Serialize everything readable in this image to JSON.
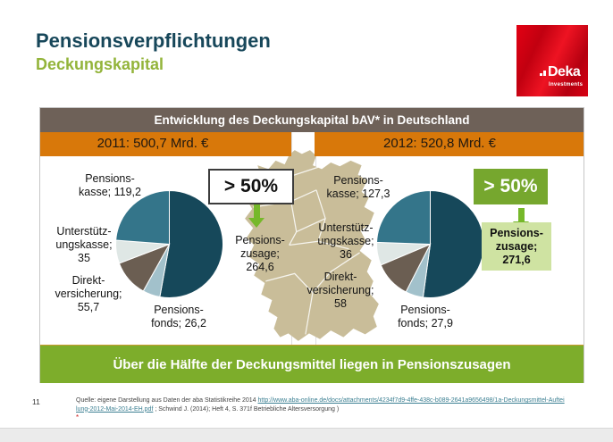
{
  "page": {
    "title": "Pensionsverpflichtungen",
    "subtitle": "Deckungskapital",
    "page_number": "11"
  },
  "logo": {
    "brand": "Deka",
    "sub": "Investments"
  },
  "panel": {
    "header": "Entwicklung des Deckungskapital bAV* in Deutschland",
    "year_left": "2011: 500,7 Mrd. €",
    "year_right": "2012: 520,8 Mrd. €",
    "footer": "Über die Hälfte der Deckungsmittel liegen in Pensionszusagen"
  },
  "left_chart": {
    "callout": "> 50%",
    "labels": {
      "pensionskasse": "Pensions-\nkasse; 119,2",
      "unterstuetzungskasse": "Unterstütz-\nungskasse;\n35",
      "direktversicherung": "Direkt-\nversicherung;\n55,7",
      "pensionsfonds": "Pensions-\nfonds; 26,2",
      "pensionszusage": "Pensions-\nzusage;\n264,6"
    }
  },
  "right_chart": {
    "callout": "> 50%",
    "labels": {
      "pensionskasse": "Pensions-\nkasse; 127,3",
      "unterstuetzungskasse": "Unterstütz-\nungskasse;\n36",
      "direktversicherung": "Direkt-\nversicherung;\n58",
      "pensionsfonds": "Pensions-\nfonds; 27,9",
      "pensionszusage": "Pensions-\nzusage;\n271,6"
    }
  },
  "source": {
    "prefix": "Quelle: eigene Darstellung aus Daten der aba Statistikreihe 2014 ",
    "link": "http://www.aba-online.de/docs/attachments/4234f7d9-4ffe-438c-b089-2641a9656498/1a-Deckungsmittel-Aufteilung-2012-Mai-2014-EH.pdf",
    "suffix": " ; Schwind J. (2014); Heft 4, S. 371f Betriebliche Altersversorgung )",
    "footnote_mark": "*"
  },
  "colors": {
    "title_teal": "#17475a",
    "subtitle_green": "#93b43a",
    "header_bar": "#6e6158",
    "orange_bar": "#d8780a",
    "green_bar": "#7dad2b",
    "callout_green": "#76a72e",
    "highlight_green": "#cfe3a2",
    "map_tan": "#c9bd99",
    "logo_red": "#e30013",
    "link_teal": "#3b7f92"
  },
  "chart_data": [
    {
      "type": "pie",
      "title": "2011: 500,7 Mrd. €",
      "total": 500.7,
      "start": "top",
      "direction": "clockwise",
      "annotation": "> 50%",
      "slices": [
        {
          "key": "pensionszusage",
          "label": "Pensionszusage",
          "value": 264.6,
          "color": "#16485a"
        },
        {
          "key": "pensionsfonds",
          "label": "Pensionsfonds",
          "value": 26.2,
          "color": "#a2c1cb"
        },
        {
          "key": "direktversicherung",
          "label": "Direktversicherung",
          "value": 55.7,
          "color": "#6b5e52"
        },
        {
          "key": "unterstuetzungskasse",
          "label": "Unterstützungskasse",
          "value": 35,
          "color": "#dfe7e5"
        },
        {
          "key": "pensionskasse",
          "label": "Pensionskasse",
          "value": 119.2,
          "color": "#34758a"
        }
      ]
    },
    {
      "type": "pie",
      "title": "2012: 520,8 Mrd. €",
      "total": 520.8,
      "start": "top",
      "direction": "clockwise",
      "annotation": "> 50%",
      "highlighted_slice": "Pensionszusage",
      "slices": [
        {
          "key": "pensionszusage",
          "label": "Pensionszusage",
          "value": 271.6,
          "color": "#16485a"
        },
        {
          "key": "pensionsfonds",
          "label": "Pensionsfonds",
          "value": 27.9,
          "color": "#a2c1cb"
        },
        {
          "key": "direktversicherung",
          "label": "Direktversicherung",
          "value": 58,
          "color": "#6b5e52"
        },
        {
          "key": "unterstuetzungskasse",
          "label": "Unterstützungskasse",
          "value": 36,
          "color": "#dfe7e5"
        },
        {
          "key": "pensionskasse",
          "label": "Pensionskasse",
          "value": 127.3,
          "color": "#34758a"
        }
      ]
    }
  ]
}
